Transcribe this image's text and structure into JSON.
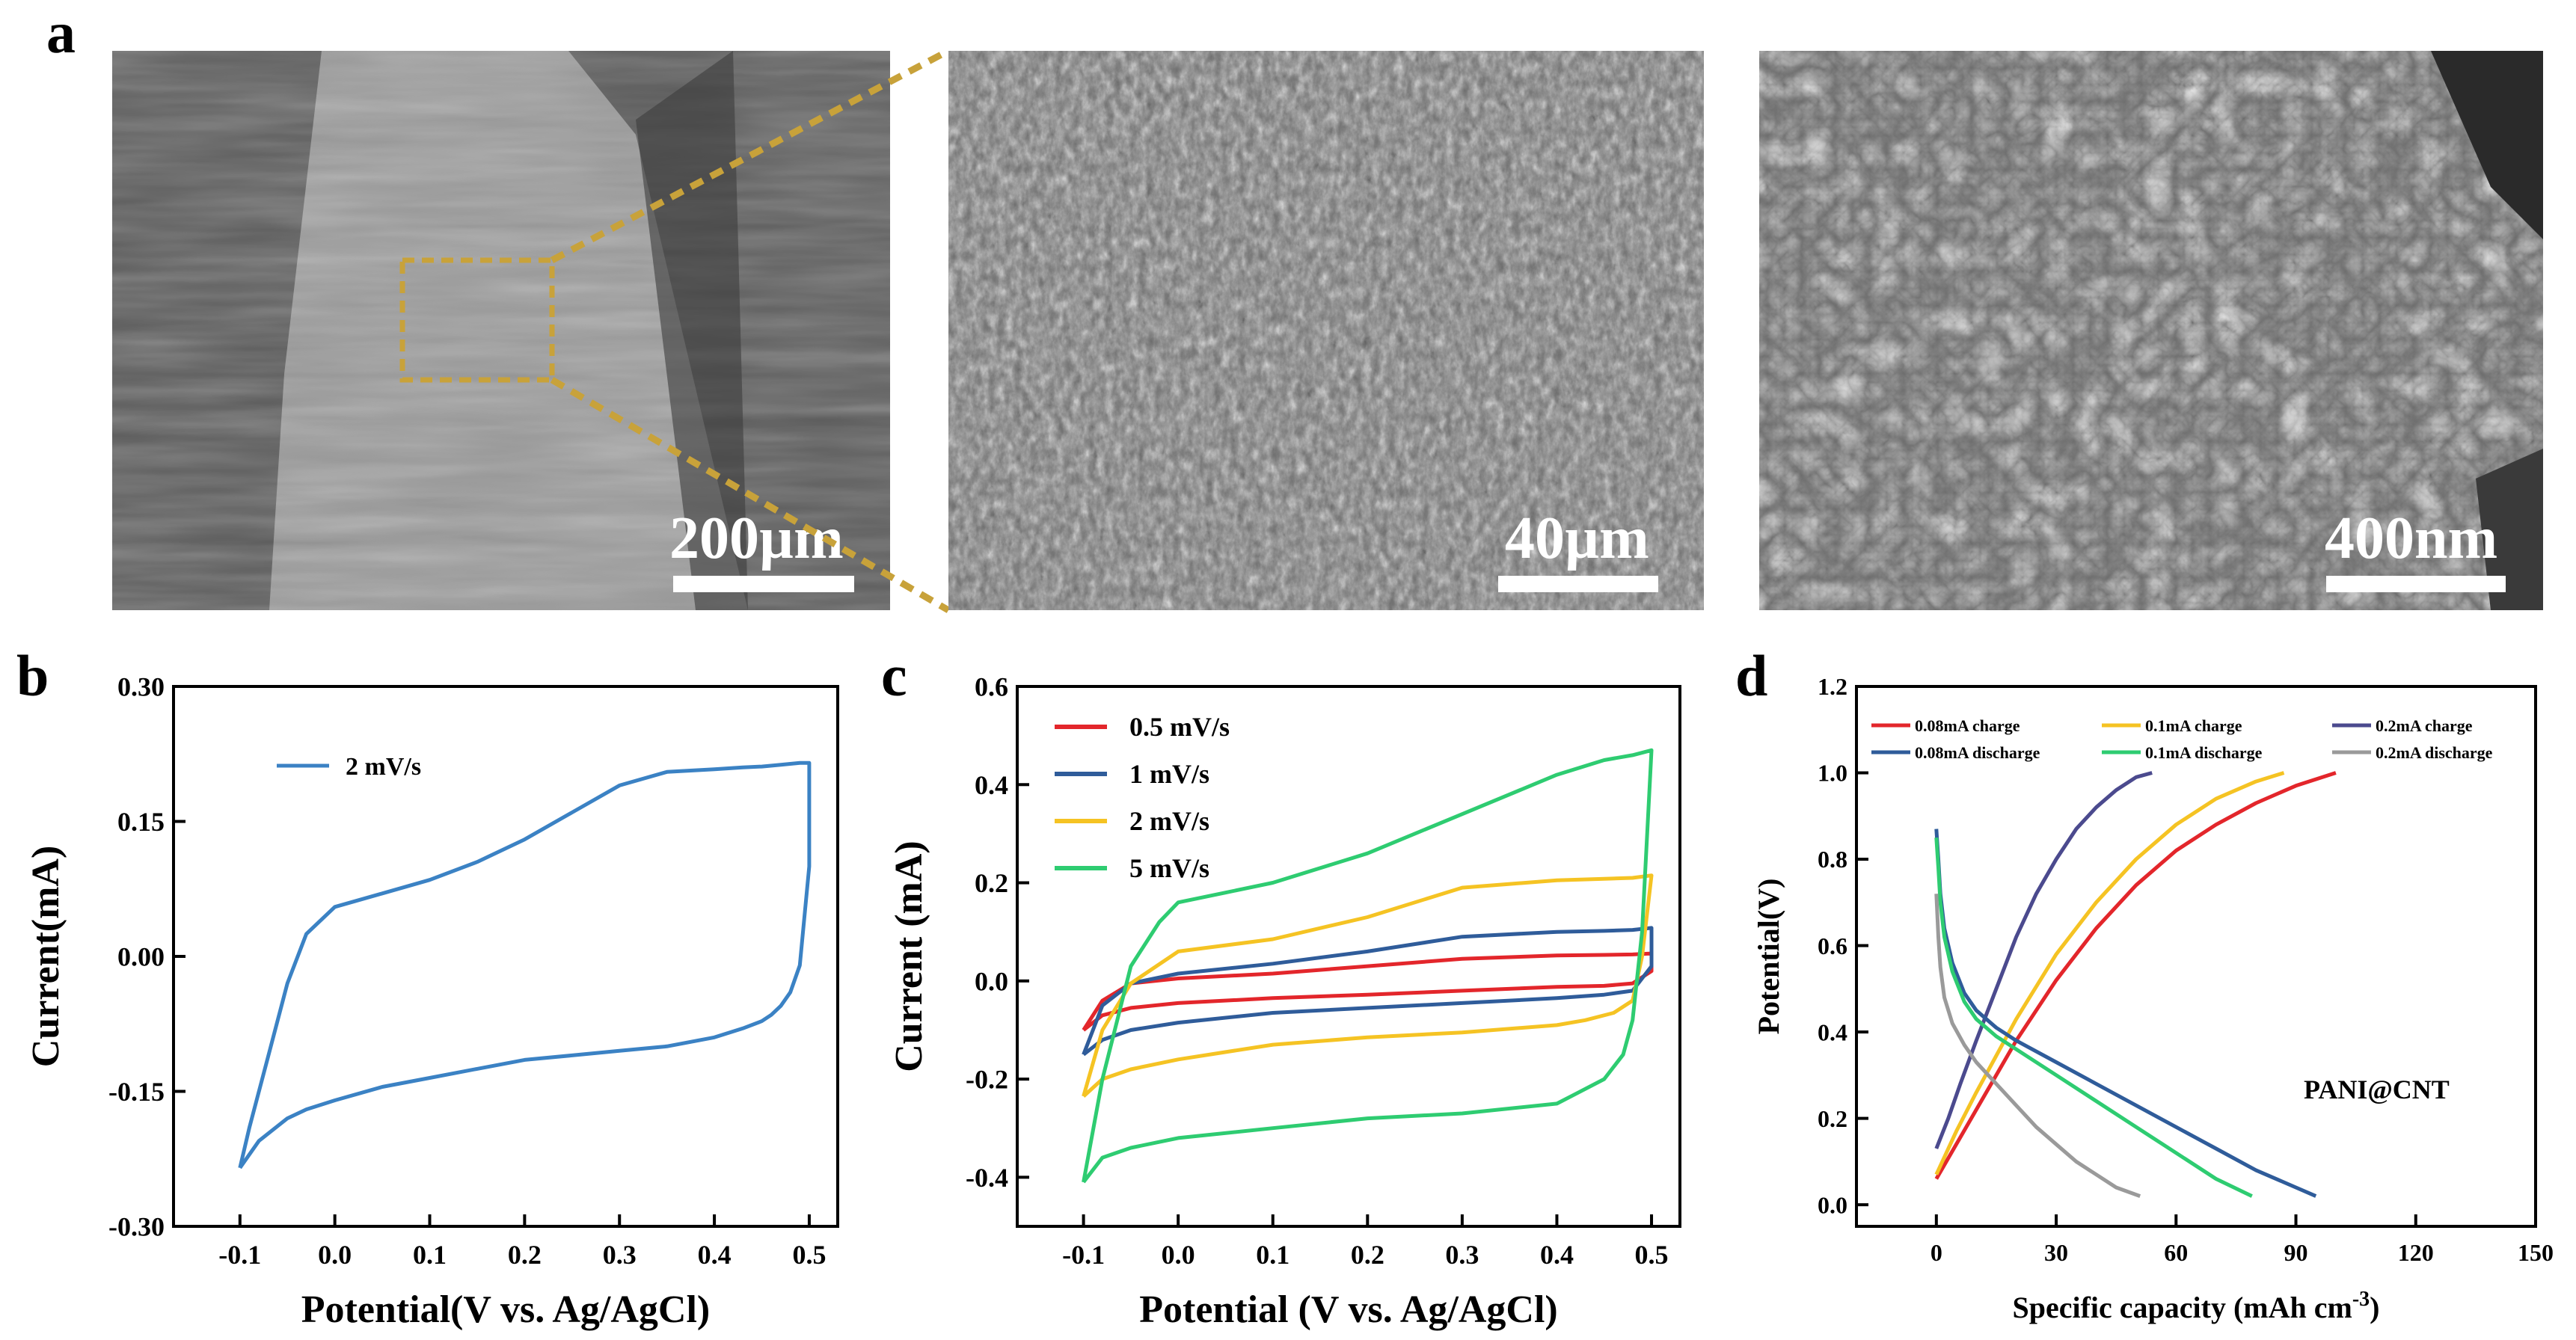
{
  "panel_labels": {
    "a": "a",
    "b": "b",
    "c": "c",
    "d": "d"
  },
  "sem_images": [
    {
      "name": "sem-low-mag",
      "scale_label": "200µm"
    },
    {
      "name": "sem-mid-mag",
      "scale_label": "40µm"
    },
    {
      "name": "sem-high-mag",
      "scale_label": "400nm"
    }
  ],
  "colors": {
    "red": "#e3262b",
    "blue": "#2f5c9a",
    "yellow": "#f5c323",
    "green": "#2ecc71",
    "b_line": "#3b82c4",
    "purple": "#4b4a8e",
    "gray": "#9a9a9a",
    "zoom": "#c8a23a"
  },
  "chart_data": [
    {
      "id": "b",
      "type": "line",
      "xlabel": "Potential(V vs. Ag/AgCl)",
      "ylabel": "Current(mA)",
      "xlim": [
        -0.17,
        0.53
      ],
      "ylim": [
        -0.3,
        0.3
      ],
      "xticks": [
        "-0.1",
        "0.0",
        "0.1",
        "0.2",
        "0.3",
        "0.4",
        "0.5"
      ],
      "yticks": [
        "0.30",
        "0.15",
        "0.00",
        "-0.15",
        "-0.30"
      ],
      "series": [
        {
          "name": "2 mV/s",
          "color": "#3b82c4",
          "x": [
            -0.1,
            -0.09,
            -0.07,
            -0.05,
            -0.03,
            0.0,
            0.05,
            0.1,
            0.15,
            0.2,
            0.25,
            0.3,
            0.35,
            0.4,
            0.43,
            0.45,
            0.47,
            0.48,
            0.49,
            0.5,
            0.5,
            0.49,
            0.48,
            0.47,
            0.46,
            0.45,
            0.43,
            0.4,
            0.35,
            0.3,
            0.25,
            0.2,
            0.15,
            0.1,
            0.05,
            0.0,
            -0.03,
            -0.05,
            -0.08,
            -0.1
          ],
          "y": [
            -0.235,
            -0.19,
            -0.11,
            -0.03,
            0.025,
            0.055,
            0.07,
            0.085,
            0.105,
            0.13,
            0.16,
            0.19,
            0.205,
            0.208,
            0.21,
            0.211,
            0.213,
            0.214,
            0.215,
            0.215,
            0.1,
            -0.01,
            -0.04,
            -0.055,
            -0.065,
            -0.072,
            -0.08,
            -0.09,
            -0.1,
            -0.105,
            -0.11,
            -0.115,
            -0.125,
            -0.135,
            -0.145,
            -0.16,
            -0.17,
            -0.18,
            -0.205,
            -0.235
          ]
        }
      ]
    },
    {
      "id": "c",
      "type": "line",
      "xlabel": "Potential (V vs. Ag/AgCl)",
      "ylabel": "Current (mA)",
      "xlim": [
        -0.17,
        0.53
      ],
      "ylim": [
        -0.5,
        0.6
      ],
      "xticks": [
        "-0.1",
        "0.0",
        "0.1",
        "0.2",
        "0.3",
        "0.4",
        "0.5"
      ],
      "yticks": [
        "0.6",
        "0.4",
        "0.2",
        "0.0",
        "-0.2",
        "-0.4"
      ],
      "series": [
        {
          "name": "0.5 mV/s",
          "color": "#e3262b",
          "x": [
            -0.1,
            -0.08,
            -0.05,
            0.0,
            0.1,
            0.2,
            0.3,
            0.4,
            0.45,
            0.48,
            0.5,
            0.5,
            0.48,
            0.45,
            0.4,
            0.3,
            0.2,
            0.1,
            0.0,
            -0.05,
            -0.08,
            -0.1
          ],
          "y": [
            -0.1,
            -0.04,
            -0.005,
            0.005,
            0.015,
            0.03,
            0.045,
            0.052,
            0.053,
            0.054,
            0.056,
            0.02,
            -0.005,
            -0.01,
            -0.012,
            -0.02,
            -0.028,
            -0.035,
            -0.045,
            -0.055,
            -0.07,
            -0.1
          ]
        },
        {
          "name": "1 mV/s",
          "color": "#2f5c9a",
          "x": [
            -0.1,
            -0.08,
            -0.05,
            0.0,
            0.1,
            0.2,
            0.3,
            0.4,
            0.45,
            0.48,
            0.5,
            0.5,
            0.48,
            0.45,
            0.4,
            0.3,
            0.2,
            0.1,
            0.0,
            -0.05,
            -0.08,
            -0.1
          ],
          "y": [
            -0.15,
            -0.05,
            -0.005,
            0.015,
            0.035,
            0.06,
            0.09,
            0.1,
            0.102,
            0.104,
            0.108,
            0.03,
            -0.02,
            -0.028,
            -0.035,
            -0.045,
            -0.055,
            -0.065,
            -0.085,
            -0.1,
            -0.12,
            -0.15
          ]
        },
        {
          "name": "2 mV/s",
          "color": "#f5c323",
          "x": [
            -0.1,
            -0.08,
            -0.05,
            0.0,
            0.1,
            0.2,
            0.3,
            0.4,
            0.45,
            0.48,
            0.5,
            0.49,
            0.48,
            0.46,
            0.43,
            0.4,
            0.3,
            0.2,
            0.1,
            0.0,
            -0.05,
            -0.08,
            -0.1
          ],
          "y": [
            -0.235,
            -0.1,
            -0.005,
            0.06,
            0.085,
            0.13,
            0.19,
            0.205,
            0.208,
            0.21,
            0.215,
            0.05,
            -0.04,
            -0.065,
            -0.08,
            -0.09,
            -0.105,
            -0.115,
            -0.13,
            -0.16,
            -0.18,
            -0.2,
            -0.235
          ]
        },
        {
          "name": "5 mV/s",
          "color": "#2ecc71",
          "x": [
            -0.1,
            -0.08,
            -0.05,
            -0.02,
            0.0,
            0.05,
            0.1,
            0.2,
            0.3,
            0.4,
            0.45,
            0.48,
            0.5,
            0.49,
            0.48,
            0.47,
            0.45,
            0.42,
            0.4,
            0.3,
            0.2,
            0.1,
            0.0,
            -0.05,
            -0.08,
            -0.1
          ],
          "y": [
            -0.41,
            -0.2,
            0.03,
            0.12,
            0.16,
            0.18,
            0.2,
            0.26,
            0.34,
            0.42,
            0.45,
            0.46,
            0.47,
            0.1,
            -0.08,
            -0.15,
            -0.2,
            -0.23,
            -0.25,
            -0.27,
            -0.28,
            -0.3,
            -0.32,
            -0.34,
            -0.36,
            -0.41
          ]
        }
      ]
    },
    {
      "id": "d",
      "type": "line",
      "xlabel": "Specific capacity (mAh cm",
      "xlabel_sup": "-3",
      "xlabel_end": ")",
      "ylabel": "Potential(V)",
      "xlim": [
        -20,
        150
      ],
      "ylim": [
        -0.05,
        1.2
      ],
      "xticks": [
        "0",
        "30",
        "60",
        "90",
        "120",
        "150"
      ],
      "yticks": [
        "1.2",
        "1.0",
        "0.8",
        "0.6",
        "0.4",
        "0.2",
        "0.0"
      ],
      "annotation": "PANI@CNT",
      "series": [
        {
          "name": "0.08mA charge",
          "color": "#e3262b",
          "x": [
            0,
            5,
            10,
            20,
            30,
            40,
            50,
            60,
            70,
            80,
            90,
            100
          ],
          "y": [
            0.06,
            0.14,
            0.22,
            0.38,
            0.52,
            0.64,
            0.74,
            0.82,
            0.88,
            0.93,
            0.97,
            1.0
          ]
        },
        {
          "name": "0.1mA charge",
          "color": "#f5c323",
          "x": [
            0,
            5,
            10,
            20,
            30,
            40,
            50,
            60,
            70,
            80,
            87
          ],
          "y": [
            0.07,
            0.17,
            0.26,
            0.43,
            0.58,
            0.7,
            0.8,
            0.88,
            0.94,
            0.98,
            1.0
          ]
        },
        {
          "name": "0.2mA  charge",
          "color": "#4b4a8e",
          "x": [
            0,
            3,
            6,
            10,
            15,
            20,
            25,
            30,
            35,
            40,
            45,
            50,
            54
          ],
          "y": [
            0.13,
            0.2,
            0.28,
            0.38,
            0.5,
            0.62,
            0.72,
            0.8,
            0.87,
            0.92,
            0.96,
            0.99,
            1.0
          ]
        },
        {
          "name": "0.08mA discharge",
          "color": "#2f5c9a",
          "x": [
            0,
            0.5,
            1,
            2,
            4,
            7,
            10,
            15,
            20,
            30,
            40,
            50,
            60,
            70,
            80,
            90,
            95
          ],
          "y": [
            0.87,
            0.8,
            0.72,
            0.64,
            0.56,
            0.49,
            0.45,
            0.41,
            0.38,
            0.33,
            0.28,
            0.23,
            0.18,
            0.13,
            0.08,
            0.04,
            0.02
          ]
        },
        {
          "name": "0.1mA discharge",
          "color": "#2ecc71",
          "x": [
            0,
            0.5,
            1,
            2,
            4,
            7,
            10,
            15,
            20,
            30,
            40,
            50,
            60,
            70,
            79
          ],
          "y": [
            0.85,
            0.78,
            0.7,
            0.62,
            0.54,
            0.47,
            0.43,
            0.39,
            0.36,
            0.3,
            0.24,
            0.18,
            0.12,
            0.06,
            0.02
          ]
        },
        {
          "name": "0.2mA discharge",
          "color": "#9a9a9a",
          "x": [
            0,
            0.5,
            1,
            2,
            4,
            7,
            10,
            15,
            20,
            25,
            30,
            35,
            40,
            45,
            51
          ],
          "y": [
            0.72,
            0.62,
            0.55,
            0.48,
            0.42,
            0.37,
            0.33,
            0.28,
            0.23,
            0.18,
            0.14,
            0.1,
            0.07,
            0.04,
            0.02
          ]
        }
      ]
    }
  ]
}
